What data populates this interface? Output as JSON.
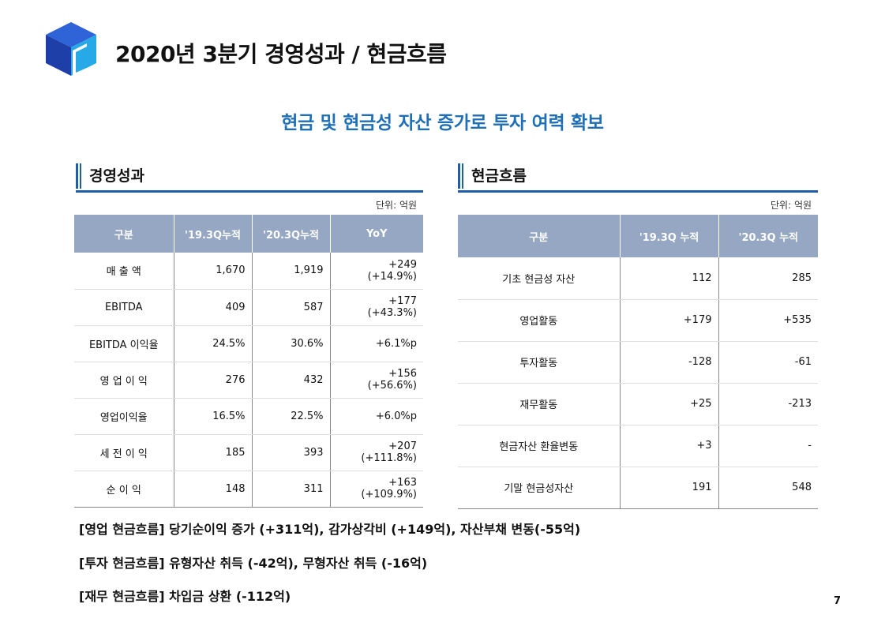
{
  "header": {
    "title": "2020년 3분기 경영성과 / 현금흐름"
  },
  "subtitle": "현금 및 현금성 자산 증가로 투자 여력 확보",
  "performance": {
    "section_title": "경영성과",
    "unit": "단위: 억원",
    "columns": [
      "구분",
      "'19.3Q누적",
      "'20.3Q누적",
      "YoY"
    ],
    "rows": [
      {
        "label": "매 출 액",
        "y19": "1,670",
        "y20": "1,919",
        "yoy": "+249 (+14.9%)"
      },
      {
        "label": "EBITDA",
        "y19": "409",
        "y20": "587",
        "yoy": "+177 (+43.3%)"
      },
      {
        "label": "EBITDA 이익율",
        "y19": "24.5%",
        "y20": "30.6%",
        "yoy": "+6.1%p"
      },
      {
        "label": "영 업 이 익",
        "y19": "276",
        "y20": "432",
        "yoy": "+156 (+56.6%)"
      },
      {
        "label": "영업이익율",
        "y19": "16.5%",
        "y20": "22.5%",
        "yoy": "+6.0%p"
      },
      {
        "label": "세 전 이 익",
        "y19": "185",
        "y20": "393",
        "yoy": "+207 (+111.8%)"
      },
      {
        "label": "순 이 익",
        "y19": "148",
        "y20": "311",
        "yoy": "+163 (+109.9%)"
      }
    ]
  },
  "cashflow": {
    "section_title": "현금흐름",
    "unit": "단위: 억원",
    "columns": [
      "구분",
      "'19.3Q 누적",
      "'20.3Q 누적"
    ],
    "rows": [
      {
        "label": "기초 현금성 자산",
        "y19": "112",
        "y20": "285"
      },
      {
        "label": "영업활동",
        "y19": "+179",
        "y20": "+535"
      },
      {
        "label": "투자활동",
        "y19": "-128",
        "y20": "-61"
      },
      {
        "label": "재무활동",
        "y19": "+25",
        "y20": "-213"
      },
      {
        "label": "현금자산 환율변동",
        "y19": "+3",
        "y20": "-"
      },
      {
        "label": "기말 현금성자산",
        "y19": "191",
        "y20": "548"
      }
    ]
  },
  "notes": [
    "[영업 현금흐름] 당기순이익 증가 (+311억), 감가상각비 (+149억), 자산부채 변동(-55억)",
    "[투자 현금흐름] 유형자산 취득 (-42억), 무형자산 취득 (-16억)",
    "[재무 현금흐름] 차입금 상환 (-112억)"
  ],
  "page_number": "7",
  "colors": {
    "accent": "#1f6fb6",
    "table_header": "#95a7c2",
    "section_bar": "#1f5fa8"
  }
}
